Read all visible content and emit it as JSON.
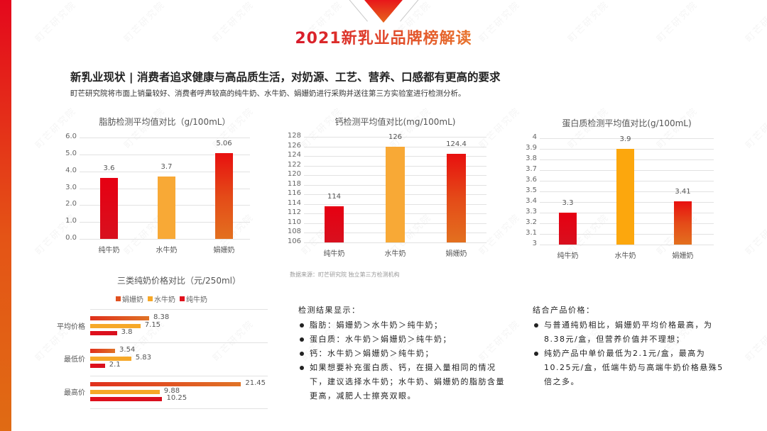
{
  "page": {
    "title": "2021新乳业品牌榜解读",
    "headline": "新乳业现状 | 消费者追求健康与高品质生活，对奶源、工艺、营养、口感都有更高的要求",
    "subline": "町芒研究院将市面上销量较好、消费者呼声较高的纯牛奶、水牛奶、娟姗奶进行采购并送往第三方实验室进行检测分析。",
    "source_note": "数据来源：町芒研究院  独立第三方检测机构",
    "watermark_text": "町芒研究院",
    "colors": {
      "accent_red": "#e60012",
      "accent_orange": "#e3701f",
      "accent_yellow": "#f8a936",
      "title_gradient_start": "#d8192a",
      "title_gradient_end": "#e8732b"
    }
  },
  "chart_data": [
    {
      "type": "bar",
      "title": "脂肪检测平均值对比（g/100mL）",
      "categories": [
        "纯牛奶",
        "水牛奶",
        "娟姗奶"
      ],
      "values": [
        3.6,
        3.7,
        5.06
      ],
      "value_labels": [
        "3.6",
        "3.7",
        "5.06"
      ],
      "xlabel": "",
      "ylabel": "",
      "ylim": [
        0,
        6
      ],
      "yticks": [
        "6.0",
        "5.0",
        "4.0",
        "3.0",
        "2.0",
        "1.0",
        "0.0"
      ],
      "grid": true
    },
    {
      "type": "bar",
      "title": "钙检测平均值对比(mg/100mL)",
      "categories": [
        "纯牛奶",
        "水牛奶",
        "娟姗奶"
      ],
      "values": [
        113.5,
        126,
        124.4
      ],
      "value_labels": [
        "114",
        "126",
        "124.4"
      ],
      "xlabel": "",
      "ylabel": "",
      "ylim": [
        106,
        128
      ],
      "yticks": [
        "128",
        "126",
        "124",
        "122",
        "120",
        "118",
        "116",
        "114",
        "112",
        "110",
        "108",
        "106"
      ],
      "grid": true
    },
    {
      "type": "bar",
      "title": "蛋白质检测平均值对比(g/100mL)",
      "categories": [
        "纯牛奶",
        "水牛奶",
        "娟姗奶"
      ],
      "values": [
        3.3,
        3.9,
        3.41
      ],
      "value_labels": [
        "3.3",
        "3.9",
        "3.41"
      ],
      "xlabel": "",
      "ylabel": "",
      "ylim": [
        3,
        4
      ],
      "yticks": [
        "4",
        "3.9",
        "3.8",
        "3.7",
        "3.6",
        "3.5",
        "3.4",
        "3.3",
        "3.2",
        "3.1",
        "3"
      ],
      "grid": true
    },
    {
      "type": "bar",
      "orientation": "horizontal",
      "title": "三类纯奶价格对比（元/250ml）",
      "categories": [
        "平均价格",
        "最低价",
        "最高价"
      ],
      "series": [
        {
          "name": "娟姗奶",
          "values": [
            8.38,
            3.54,
            21.45
          ],
          "labels": [
            "8.38",
            "3.54",
            "21.45"
          ]
        },
        {
          "name": "水牛奶",
          "values": [
            7.15,
            5.83,
            9.88
          ],
          "labels": [
            "7.15",
            "5.83",
            "9.88"
          ]
        },
        {
          "name": "纯牛奶",
          "values": [
            3.8,
            2.1,
            10.25
          ],
          "labels": [
            "3.8",
            "2.1",
            "10.25"
          ]
        }
      ],
      "legend_position": "top",
      "grid": true
    }
  ],
  "findings": {
    "heading": "检测结果显示：",
    "items": [
      "脂肪：娟姗奶＞水牛奶＞纯牛奶；",
      "蛋白质：水牛奶＞娟姗奶＞纯牛奶；",
      "钙：水牛奶＞娟姗奶＞纯牛奶；",
      "如果想要补充蛋白质、钙，在摄入量相同的情况下，建议选择水牛奶；水牛奶、娟姗奶的脂肪含量更高，减肥人士擦亮双眼。"
    ]
  },
  "price_notes": {
    "heading": "结合产品价格：",
    "items": [
      "与普通纯奶相比，娟姗奶平均价格最高，为8.38元/盒，但营养价值并不理想；",
      "纯奶产品中单价最低为2.1元/盒，最高为10.25元/盒，低端牛奶与高端牛奶价格悬殊5倍之多。"
    ]
  }
}
